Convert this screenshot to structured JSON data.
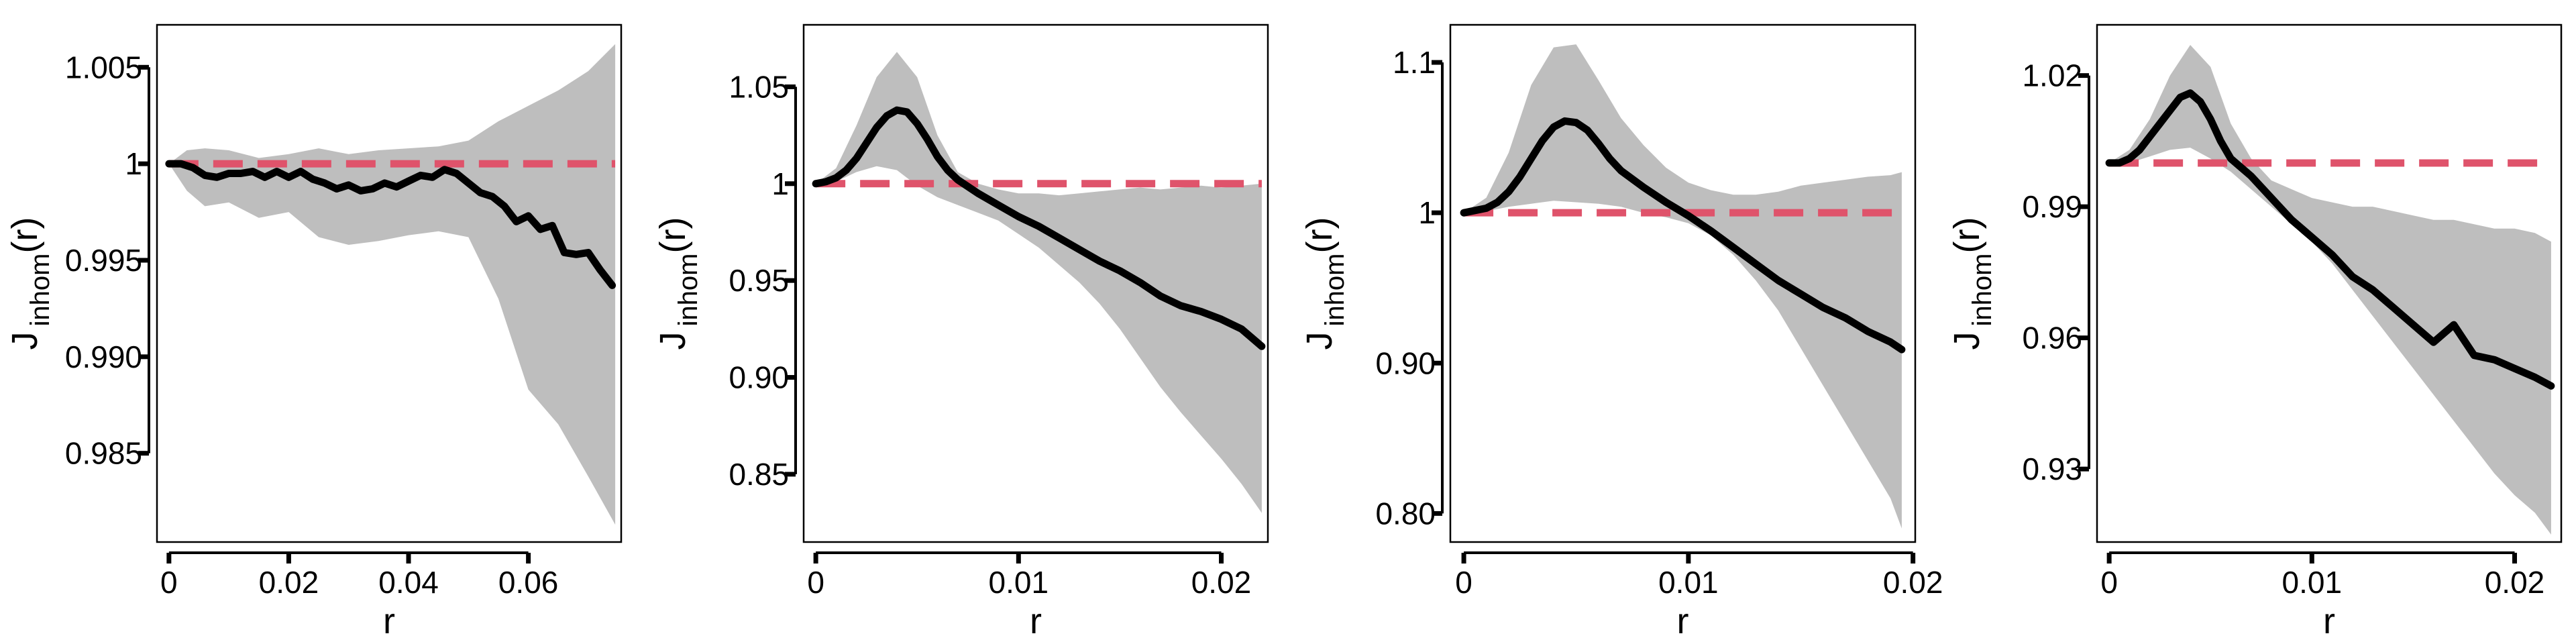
{
  "figure": {
    "background": "#ffffff",
    "envelope_color": "#bebebe",
    "observed_color": "#000000",
    "theoretical_color": "#df536b"
  },
  "chart_data": [
    {
      "type": "line",
      "xlabel": "r",
      "ylabel": {
        "main": "J",
        "sub": "inhom",
        "suffix": "(r)"
      },
      "xlim": [
        -0.002,
        0.0755
      ],
      "ylim": [
        0.9804,
        1.0072
      ],
      "xticks": [
        0,
        0.02,
        0.04,
        0.06
      ],
      "xtick_labels": [
        "0",
        "0.02",
        "0.04",
        "0.06"
      ],
      "yticks": [
        0.985,
        0.99,
        0.995,
        1,
        1.005
      ],
      "ytick_labels": [
        "0.985",
        "0.990",
        "0.995",
        "1",
        "1.005"
      ],
      "series": [
        {
          "role": "envelope",
          "x": [
            0,
            0.003,
            0.006,
            0.01,
            0.015,
            0.02,
            0.025,
            0.03,
            0.035,
            0.04,
            0.045,
            0.05,
            0.055,
            0.06,
            0.065,
            0.07,
            0.0745
          ],
          "lower": [
            1.0,
            0.9986,
            0.9978,
            0.998,
            0.9972,
            0.9975,
            0.9962,
            0.9958,
            0.996,
            0.9963,
            0.9965,
            0.9962,
            0.993,
            0.9883,
            0.9865,
            0.9838,
            0.9813
          ],
          "upper": [
            1.0,
            1.0007,
            1.0008,
            1.0007,
            1.0003,
            1.0005,
            1.0008,
            1.0005,
            1.0007,
            1.0008,
            1.0009,
            1.0012,
            1.0022,
            1.003,
            1.0038,
            1.0048,
            1.0062
          ]
        },
        {
          "role": "observed",
          "x": [
            0,
            0.002,
            0.004,
            0.006,
            0.008,
            0.01,
            0.012,
            0.014,
            0.016,
            0.018,
            0.02,
            0.022,
            0.024,
            0.026,
            0.028,
            0.03,
            0.032,
            0.034,
            0.036,
            0.038,
            0.04,
            0.042,
            0.044,
            0.046,
            0.048,
            0.05,
            0.052,
            0.054,
            0.056,
            0.058,
            0.06,
            0.062,
            0.064,
            0.066,
            0.068,
            0.07,
            0.072,
            0.074
          ],
          "y": [
            1.0,
            1.0,
            0.9998,
            0.9994,
            0.9993,
            0.9995,
            0.9995,
            0.9996,
            0.9993,
            0.9996,
            0.9993,
            0.9996,
            0.9992,
            0.999,
            0.9987,
            0.9989,
            0.9986,
            0.9987,
            0.999,
            0.9988,
            0.9991,
            0.9994,
            0.9993,
            0.9997,
            0.9995,
            0.999,
            0.9985,
            0.9983,
            0.9978,
            0.997,
            0.9973,
            0.9966,
            0.9968,
            0.9954,
            0.9953,
            0.9954,
            0.9945,
            0.9937
          ]
        },
        {
          "role": "theoretical",
          "x": [
            0,
            0.0745
          ],
          "y": [
            1,
            1
          ]
        }
      ]
    },
    {
      "type": "line",
      "xlabel": "r",
      "ylabel": {
        "main": "J",
        "sub": "inhom",
        "suffix": "(r)"
      },
      "xlim": [
        -0.0006,
        0.0223
      ],
      "ylim": [
        0.815,
        1.082
      ],
      "xticks": [
        0,
        0.01,
        0.02
      ],
      "xtick_labels": [
        "0",
        "0.01",
        "0.02"
      ],
      "yticks": [
        0.85,
        0.9,
        0.95,
        1,
        1.05
      ],
      "ytick_labels": [
        "0.85",
        "0.90",
        "0.95",
        "1",
        "1.05"
      ],
      "series": [
        {
          "role": "envelope",
          "x": [
            0,
            0.001,
            0.002,
            0.003,
            0.004,
            0.005,
            0.006,
            0.007,
            0.008,
            0.009,
            0.01,
            0.011,
            0.012,
            0.013,
            0.014,
            0.015,
            0.016,
            0.017,
            0.018,
            0.019,
            0.02,
            0.021,
            0.022
          ],
          "lower": [
            1.0,
            1.001,
            1.006,
            1.009,
            1.007,
            0.999,
            0.993,
            0.989,
            0.985,
            0.981,
            0.974,
            0.967,
            0.958,
            0.949,
            0.938,
            0.925,
            0.91,
            0.895,
            0.882,
            0.87,
            0.858,
            0.845,
            0.83
          ],
          "upper": [
            1.0,
            1.008,
            1.03,
            1.055,
            1.068,
            1.055,
            1.025,
            1.006,
            1.0,
            0.997,
            0.995,
            0.995,
            0.994,
            0.995,
            0.996,
            0.997,
            0.998,
            0.997,
            0.998,
            0.999,
            0.998,
            0.999,
            1.0
          ]
        },
        {
          "role": "observed",
          "x": [
            0,
            0.0005,
            0.001,
            0.0015,
            0.002,
            0.0025,
            0.003,
            0.0035,
            0.004,
            0.0045,
            0.005,
            0.0055,
            0.006,
            0.0065,
            0.007,
            0.008,
            0.009,
            0.01,
            0.011,
            0.012,
            0.013,
            0.014,
            0.015,
            0.016,
            0.017,
            0.018,
            0.019,
            0.02,
            0.021,
            0.022
          ],
          "y": [
            1.0,
            1.001,
            1.003,
            1.007,
            1.013,
            1.021,
            1.029,
            1.035,
            1.038,
            1.037,
            1.031,
            1.023,
            1.014,
            1.007,
            1.002,
            0.995,
            0.989,
            0.983,
            0.978,
            0.972,
            0.966,
            0.96,
            0.955,
            0.949,
            0.942,
            0.937,
            0.934,
            0.93,
            0.925,
            0.916
          ]
        },
        {
          "role": "theoretical",
          "x": [
            0,
            0.022
          ],
          "y": [
            1,
            1
          ]
        }
      ]
    },
    {
      "type": "line",
      "xlabel": "r",
      "ylabel": {
        "main": "J",
        "sub": "inhom",
        "suffix": "(r)"
      },
      "xlim": [
        -0.0006,
        0.0201
      ],
      "ylim": [
        0.781,
        1.125
      ],
      "xticks": [
        0,
        0.01,
        0.02
      ],
      "xtick_labels": [
        "0",
        "0.01",
        "0.02"
      ],
      "yticks": [
        0.8,
        0.9,
        1,
        1.1
      ],
      "ytick_labels": [
        "0.80",
        "0.90",
        "1",
        "1.1"
      ],
      "series": [
        {
          "role": "envelope",
          "x": [
            0,
            0.001,
            0.002,
            0.003,
            0.004,
            0.005,
            0.006,
            0.007,
            0.008,
            0.009,
            0.01,
            0.011,
            0.012,
            0.013,
            0.014,
            0.015,
            0.016,
            0.017,
            0.018,
            0.019,
            0.0195
          ],
          "lower": [
            1.0,
            1.001,
            1.004,
            1.006,
            1.008,
            1.007,
            1.006,
            1.004,
            1.0,
            0.997,
            0.993,
            0.985,
            0.972,
            0.955,
            0.935,
            0.91,
            0.885,
            0.86,
            0.835,
            0.81,
            0.79
          ],
          "upper": [
            1.0,
            1.01,
            1.04,
            1.085,
            1.11,
            1.112,
            1.088,
            1.063,
            1.045,
            1.03,
            1.02,
            1.015,
            1.012,
            1.012,
            1.014,
            1.018,
            1.02,
            1.022,
            1.024,
            1.025,
            1.027
          ]
        },
        {
          "role": "observed",
          "x": [
            0,
            0.001,
            0.0015,
            0.002,
            0.0025,
            0.003,
            0.0035,
            0.004,
            0.0045,
            0.005,
            0.0055,
            0.006,
            0.0065,
            0.007,
            0.008,
            0.009,
            0.01,
            0.011,
            0.012,
            0.013,
            0.014,
            0.015,
            0.016,
            0.017,
            0.018,
            0.019,
            0.0195
          ],
          "y": [
            1.0,
            1.003,
            1.007,
            1.014,
            1.024,
            1.036,
            1.048,
            1.057,
            1.061,
            1.06,
            1.055,
            1.046,
            1.036,
            1.028,
            1.017,
            1.007,
            0.998,
            0.988,
            0.977,
            0.966,
            0.955,
            0.946,
            0.937,
            0.93,
            0.921,
            0.914,
            0.909
          ]
        },
        {
          "role": "theoretical",
          "x": [
            0,
            0.0195
          ],
          "y": [
            1,
            1
          ]
        }
      ]
    },
    {
      "type": "line",
      "xlabel": "r",
      "ylabel": {
        "main": "J",
        "sub": "inhom",
        "suffix": "(r)"
      },
      "xlim": [
        -0.0006,
        0.0223
      ],
      "ylim": [
        0.9133,
        1.0316
      ],
      "xticks": [
        0,
        0.01,
        0.02
      ],
      "xtick_labels": [
        "0",
        "0.01",
        "0.02"
      ],
      "yticks": [
        0.93,
        0.96,
        0.99,
        1.02
      ],
      "ytick_labels": [
        "0.93",
        "0.96",
        "0.99",
        "1.02"
      ],
      "series": [
        {
          "role": "envelope",
          "x": [
            0,
            0.001,
            0.002,
            0.003,
            0.004,
            0.005,
            0.006,
            0.007,
            0.008,
            0.009,
            0.01,
            0.011,
            0.012,
            0.013,
            0.014,
            0.015,
            0.016,
            0.017,
            0.018,
            0.019,
            0.02,
            0.021,
            0.0218
          ],
          "lower": [
            1.0,
            1.0,
            1.0015,
            1.003,
            1.0035,
            1.001,
            0.998,
            0.994,
            0.99,
            0.986,
            0.982,
            0.977,
            0.971,
            0.965,
            0.959,
            0.953,
            0.947,
            0.941,
            0.935,
            0.929,
            0.924,
            0.92,
            0.915
          ],
          "upper": [
            1.0,
            1.003,
            1.01,
            1.02,
            1.027,
            1.022,
            1.009,
            1.001,
            0.996,
            0.994,
            0.992,
            0.991,
            0.99,
            0.99,
            0.989,
            0.988,
            0.987,
            0.987,
            0.986,
            0.985,
            0.985,
            0.984,
            0.982
          ]
        },
        {
          "role": "observed",
          "x": [
            0,
            0.0005,
            0.001,
            0.0015,
            0.002,
            0.0025,
            0.003,
            0.0035,
            0.004,
            0.0045,
            0.005,
            0.0055,
            0.006,
            0.007,
            0.008,
            0.009,
            0.01,
            0.011,
            0.012,
            0.013,
            0.014,
            0.015,
            0.016,
            0.017,
            0.018,
            0.019,
            0.02,
            0.021,
            0.0218
          ],
          "y": [
            1.0,
            1.0,
            1.001,
            1.003,
            1.006,
            1.009,
            1.012,
            1.015,
            1.016,
            1.014,
            1.01,
            1.005,
            1.001,
            0.997,
            0.992,
            0.987,
            0.983,
            0.979,
            0.974,
            0.971,
            0.967,
            0.963,
            0.959,
            0.963,
            0.956,
            0.955,
            0.953,
            0.951,
            0.949
          ]
        },
        {
          "role": "theoretical",
          "x": [
            0,
            0.0218
          ],
          "y": [
            1,
            1
          ]
        }
      ]
    }
  ]
}
